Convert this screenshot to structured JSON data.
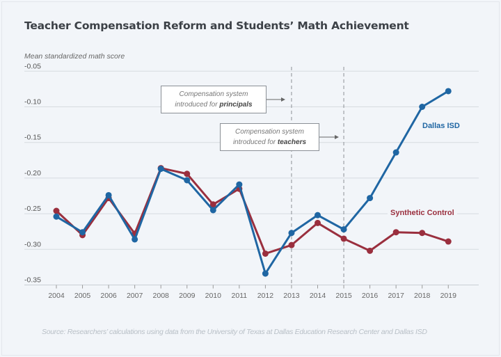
{
  "chart_data": {
    "type": "line",
    "title": "Teacher Compensation Reform and Students’ Math Achievement",
    "ylabel": "Mean standardized math score",
    "xlabel": "",
    "ylim": [
      -0.35,
      -0.05
    ],
    "yticks": [
      "-0.05",
      "-0.10",
      "-0.15",
      "-0.20",
      "-0.25",
      "-0.30",
      "-0.35"
    ],
    "ytick_values": [
      -0.05,
      -0.1,
      -0.15,
      -0.2,
      -0.25,
      -0.3,
      -0.35
    ],
    "x": [
      2004,
      2005,
      2006,
      2007,
      2008,
      2009,
      2010,
      2011,
      2012,
      2013,
      2014,
      2015,
      2016,
      2017,
      2018,
      2019
    ],
    "grid": "horizontal",
    "series": [
      {
        "name": "Dallas ISD",
        "color": "#1f66a3",
        "values": [
          -0.254,
          -0.276,
          -0.224,
          -0.286,
          -0.187,
          -0.203,
          -0.245,
          -0.209,
          -0.334,
          -0.277,
          -0.252,
          -0.272,
          -0.228,
          -0.164,
          -0.1,
          -0.078
        ]
      },
      {
        "name": "Synthetic Control",
        "color": "#9a2f3e",
        "values": [
          -0.246,
          -0.28,
          -0.228,
          -0.278,
          -0.186,
          -0.194,
          -0.237,
          -0.215,
          -0.306,
          -0.294,
          -0.263,
          -0.285,
          -0.302,
          -0.276,
          -0.277,
          -0.289
        ]
      }
    ],
    "annotations": [
      {
        "x": 2013,
        "line1": "Compensation system",
        "line2_prefix": "introduced for ",
        "line2_bold": "principals"
      },
      {
        "x": 2015,
        "line1": "Compensation system",
        "line2_prefix": "introduced for ",
        "line2_bold": "teachers"
      }
    ],
    "source": "Source: Researchers’ calculations using data from the University of Texas at Dallas Education Research Center and Dallas ISD"
  }
}
